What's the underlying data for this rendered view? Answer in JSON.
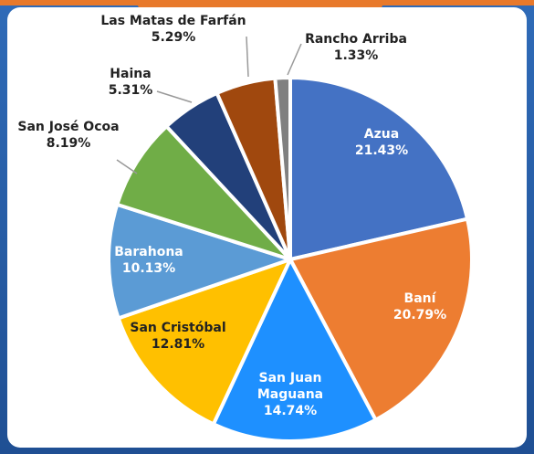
{
  "chart_data": {
    "type": "pie",
    "categories": [
      "Azua",
      "Baní",
      "San Juan Maguana",
      "San Cristóbal",
      "Barahona",
      "San José Ocoa",
      "Haina",
      "Las Matas de Farfán",
      "Rancho Arriba"
    ],
    "values": [
      21.43,
      20.79,
      14.74,
      12.81,
      10.13,
      8.19,
      5.31,
      5.29,
      1.33
    ],
    "value_labels": [
      "21.43%",
      "20.79%",
      "14.74%",
      "12.81%",
      "10.13%",
      "8.19%",
      "5.31%",
      "5.29%",
      "1.33%"
    ],
    "colors": [
      "#4472c4",
      "#ed7d31",
      "#1e90ff",
      "#ffc000",
      "#5b9bd5",
      "#70ad47",
      "#22407a",
      "#a0480e",
      "#808080"
    ]
  }
}
